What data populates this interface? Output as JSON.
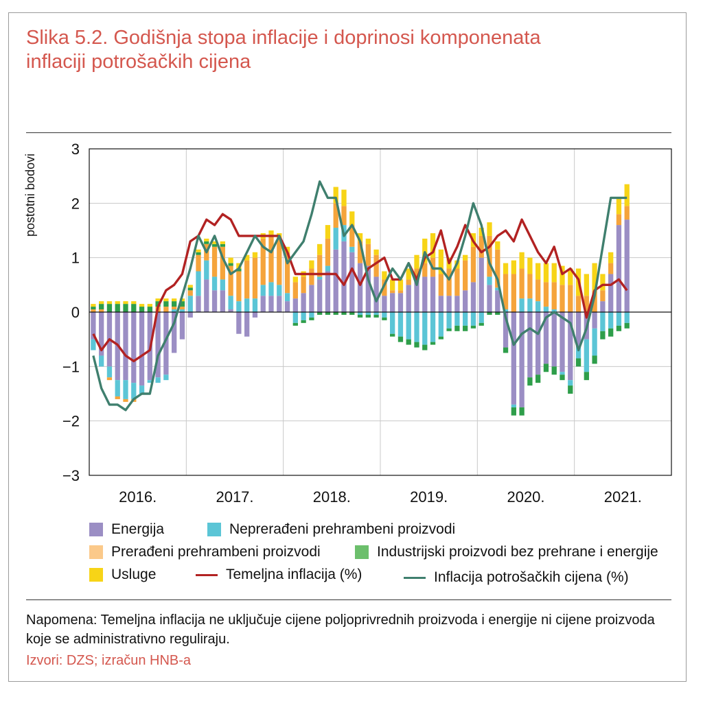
{
  "title_line1": "Slika 5.2. Godišnja stopa inflacije i doprinosi komponenata",
  "title_line2": "inflaciji potrošačkih cijena",
  "note": "Napomena: Temeljna inflacija ne uključuje cijene poljoprivrednih proizvoda i energije ni cijene proizvoda koje se administrativno reguliraju.",
  "source": "Izvori: DZS;  izračun HNB-a",
  "colors": {
    "energy": "#9b8ec4",
    "unprocessed": "#5bc5d6",
    "processed": "#f5a43b",
    "industrial": "#5cb85c",
    "services": "#f7d417",
    "core": "#b22222",
    "cpi": "#3f7f6e",
    "title": "#d4574e"
  },
  "legend": {
    "energy": "Energija",
    "unprocessed": "Neprerađeni prehrambeni proizvodi",
    "processed": "Prerađeni prehrambeni proizvodi",
    "industrial": "Industrijski proizvodi bez prehrane i energije",
    "services": "Usluge",
    "core": "Temeljna inflacija (%)",
    "cpi": "Inflacija potrošačkih cijena (%)"
  },
  "chart_data": {
    "type": "bar",
    "title": "Godišnja stopa inflacije i doprinosi komponenata inflaciji potrošačkih cijena",
    "ylabel": "postotni bodovi",
    "ylim": [
      -3,
      3
    ],
    "yticks": [
      3,
      2,
      1,
      0,
      -1,
      -2,
      -3
    ],
    "ytick_labels": [
      "3",
      "2",
      "1",
      "0",
      "−1",
      "−2",
      "−3"
    ],
    "year_labels": [
      "2016.",
      "2017.",
      "2018.",
      "2019.",
      "2020.",
      "2021."
    ],
    "months_per_year": 12,
    "start": "2016-01",
    "stacked_series": [
      {
        "key": "energy",
        "name": "Energija",
        "values": [
          -0.5,
          -0.8,
          -1.0,
          -1.25,
          -1.25,
          -1.3,
          -1.35,
          -1.25,
          -1.2,
          -1.15,
          -0.75,
          -0.5,
          -0.1,
          0.3,
          0.6,
          0.4,
          0.4,
          0.05,
          -0.4,
          -0.45,
          -0.1,
          0.3,
          0.3,
          0.3,
          0.2,
          0.25,
          0.35,
          0.5,
          0.6,
          0.75,
          1.15,
          1.3,
          1.1,
          0.9,
          0.85,
          0.65,
          0.3,
          0.35,
          0.35,
          0.5,
          0.6,
          0.65,
          0.65,
          0.3,
          0.3,
          0.3,
          0.4,
          0.55,
          1.0,
          0.5,
          0.4,
          -0.65,
          -1.7,
          -1.75,
          -1.2,
          -1.15,
          -0.95,
          -1.0,
          -1.1,
          -1.25,
          -0.65,
          -0.5,
          -0.3,
          0.2,
          0.7,
          1.6,
          1.7
        ]
      },
      {
        "key": "unprocessed",
        "name": "Neprerađeni prehrambeni proizvodi",
        "values": [
          -0.2,
          -0.2,
          -0.2,
          -0.3,
          -0.35,
          -0.3,
          -0.15,
          -0.05,
          -0.1,
          -0.1,
          0.05,
          0.05,
          0.3,
          0.45,
          0.35,
          0.25,
          0.2,
          0.25,
          0.2,
          0.25,
          0.25,
          0.2,
          0.25,
          0.2,
          0.15,
          -0.2,
          -0.15,
          -0.1,
          0.05,
          0.1,
          0.4,
          0.3,
          0.1,
          -0.05,
          -0.05,
          -0.05,
          -0.1,
          -0.4,
          -0.45,
          -0.5,
          -0.55,
          -0.6,
          -0.55,
          -0.45,
          -0.3,
          -0.25,
          -0.25,
          -0.25,
          -0.2,
          0.15,
          0.05,
          0.05,
          -0.05,
          0.25,
          0.25,
          0.2,
          0.1,
          0.05,
          -0.05,
          -0.1,
          -0.2,
          -0.6,
          -0.5,
          -0.35,
          -0.3,
          -0.25,
          -0.2
        ]
      },
      {
        "key": "processed",
        "name": "Prerađeni prehrambeni proizvodi",
        "values": [
          0.05,
          0.05,
          -0.05,
          -0.05,
          -0.05,
          -0.05,
          0.0,
          0.0,
          0.1,
          0.1,
          0.05,
          0.05,
          0.1,
          0.3,
          0.3,
          0.55,
          0.6,
          0.55,
          0.55,
          0.7,
          0.75,
          0.85,
          0.85,
          0.85,
          0.75,
          0.3,
          0.3,
          0.3,
          0.4,
          0.5,
          0.45,
          0.35,
          0.4,
          0.4,
          0.4,
          0.4,
          0.3,
          0.05,
          0.05,
          0.1,
          0.2,
          0.25,
          0.35,
          0.4,
          0.5,
          0.5,
          0.55,
          0.65,
          0.4,
          0.75,
          0.7,
          0.65,
          0.7,
          0.55,
          0.45,
          0.4,
          0.45,
          0.5,
          0.5,
          0.5,
          0.3,
          0.3,
          0.4,
          0.2,
          0.2,
          0.2,
          0.25
        ]
      },
      {
        "key": "industrial",
        "name": "Industrijski proizvodi bez prehrane i energije",
        "values": [
          0.05,
          0.1,
          0.15,
          0.15,
          0.15,
          0.15,
          0.1,
          0.1,
          0.1,
          0.1,
          0.1,
          0.1,
          0.05,
          0.05,
          0.05,
          0.05,
          0.05,
          0.05,
          0.05,
          0.0,
          0.0,
          0.0,
          0.0,
          0.0,
          0.0,
          -0.05,
          -0.05,
          -0.05,
          -0.05,
          -0.05,
          -0.05,
          -0.05,
          -0.05,
          -0.05,
          -0.05,
          -0.05,
          -0.05,
          -0.05,
          -0.1,
          -0.1,
          -0.1,
          -0.1,
          -0.05,
          -0.05,
          -0.05,
          -0.1,
          -0.1,
          -0.05,
          -0.05,
          -0.05,
          -0.05,
          -0.1,
          -0.15,
          -0.15,
          -0.15,
          -0.15,
          -0.15,
          -0.15,
          -0.1,
          -0.15,
          -0.15,
          -0.15,
          -0.15,
          -0.15,
          -0.15,
          -0.1,
          -0.1
        ]
      },
      {
        "key": "services",
        "name": "Usluge",
        "values": [
          0.05,
          0.05,
          0.05,
          0.05,
          0.05,
          0.05,
          0.05,
          0.05,
          0.05,
          0.05,
          0.05,
          0.05,
          0.05,
          0.05,
          0.05,
          0.05,
          0.05,
          0.1,
          0.1,
          0.1,
          0.1,
          0.1,
          0.1,
          0.1,
          0.1,
          0.1,
          0.1,
          0.15,
          0.2,
          0.25,
          0.3,
          0.3,
          0.25,
          0.15,
          0.1,
          0.1,
          0.15,
          0.2,
          0.2,
          0.2,
          0.25,
          0.45,
          0.45,
          0.45,
          0.2,
          0.15,
          0.1,
          0.25,
          0.15,
          0.25,
          0.15,
          0.2,
          0.25,
          0.3,
          0.3,
          0.3,
          0.35,
          0.35,
          0.35,
          0.3,
          0.5,
          0.4,
          0.5,
          0.3,
          0.2,
          0.3,
          0.4
        ]
      }
    ],
    "lines": [
      {
        "key": "core",
        "name": "Temeljna inflacija (%)",
        "values": [
          -0.4,
          -0.7,
          -0.5,
          -0.6,
          -0.8,
          -0.9,
          -0.8,
          -0.7,
          0.1,
          0.4,
          0.5,
          0.7,
          1.3,
          1.4,
          1.7,
          1.6,
          1.8,
          1.7,
          1.4,
          1.4,
          1.4,
          1.4,
          1.4,
          1.4,
          1.1,
          0.7,
          0.7,
          0.7,
          0.7,
          0.7,
          0.7,
          0.5,
          0.8,
          0.5,
          0.8,
          0.9,
          1.0,
          0.6,
          0.6,
          0.9,
          0.6,
          1.0,
          1.1,
          1.5,
          0.9,
          1.2,
          1.6,
          1.3,
          1.1,
          1.2,
          1.4,
          1.5,
          1.3,
          1.7,
          1.4,
          1.1,
          0.9,
          1.2,
          0.7,
          0.8,
          0.6,
          -0.1,
          0.4,
          0.5,
          0.5,
          0.6,
          0.4
        ]
      },
      {
        "key": "cpi",
        "name": "Inflacija potrošačkih cijena (%)",
        "values": [
          -0.8,
          -1.4,
          -1.7,
          -1.7,
          -1.8,
          -1.6,
          -1.5,
          -1.5,
          -0.8,
          -0.5,
          -0.2,
          0.3,
          0.8,
          1.4,
          1.1,
          1.4,
          1.0,
          0.7,
          0.8,
          1.1,
          1.4,
          1.2,
          1.1,
          1.4,
          0.9,
          1.1,
          1.3,
          1.8,
          2.4,
          2.1,
          2.1,
          1.4,
          1.6,
          1.3,
          0.6,
          0.2,
          0.5,
          0.8,
          0.6,
          0.9,
          0.5,
          1.1,
          0.8,
          0.8,
          0.6,
          0.9,
          1.4,
          2.0,
          1.6,
          0.9,
          0.6,
          -0.1,
          -0.6,
          -0.4,
          -0.3,
          -0.4,
          -0.1,
          0.0,
          -0.1,
          -0.2,
          -0.7,
          -0.3,
          0.3,
          1.2,
          2.1,
          2.1,
          2.1
        ]
      }
    ]
  }
}
